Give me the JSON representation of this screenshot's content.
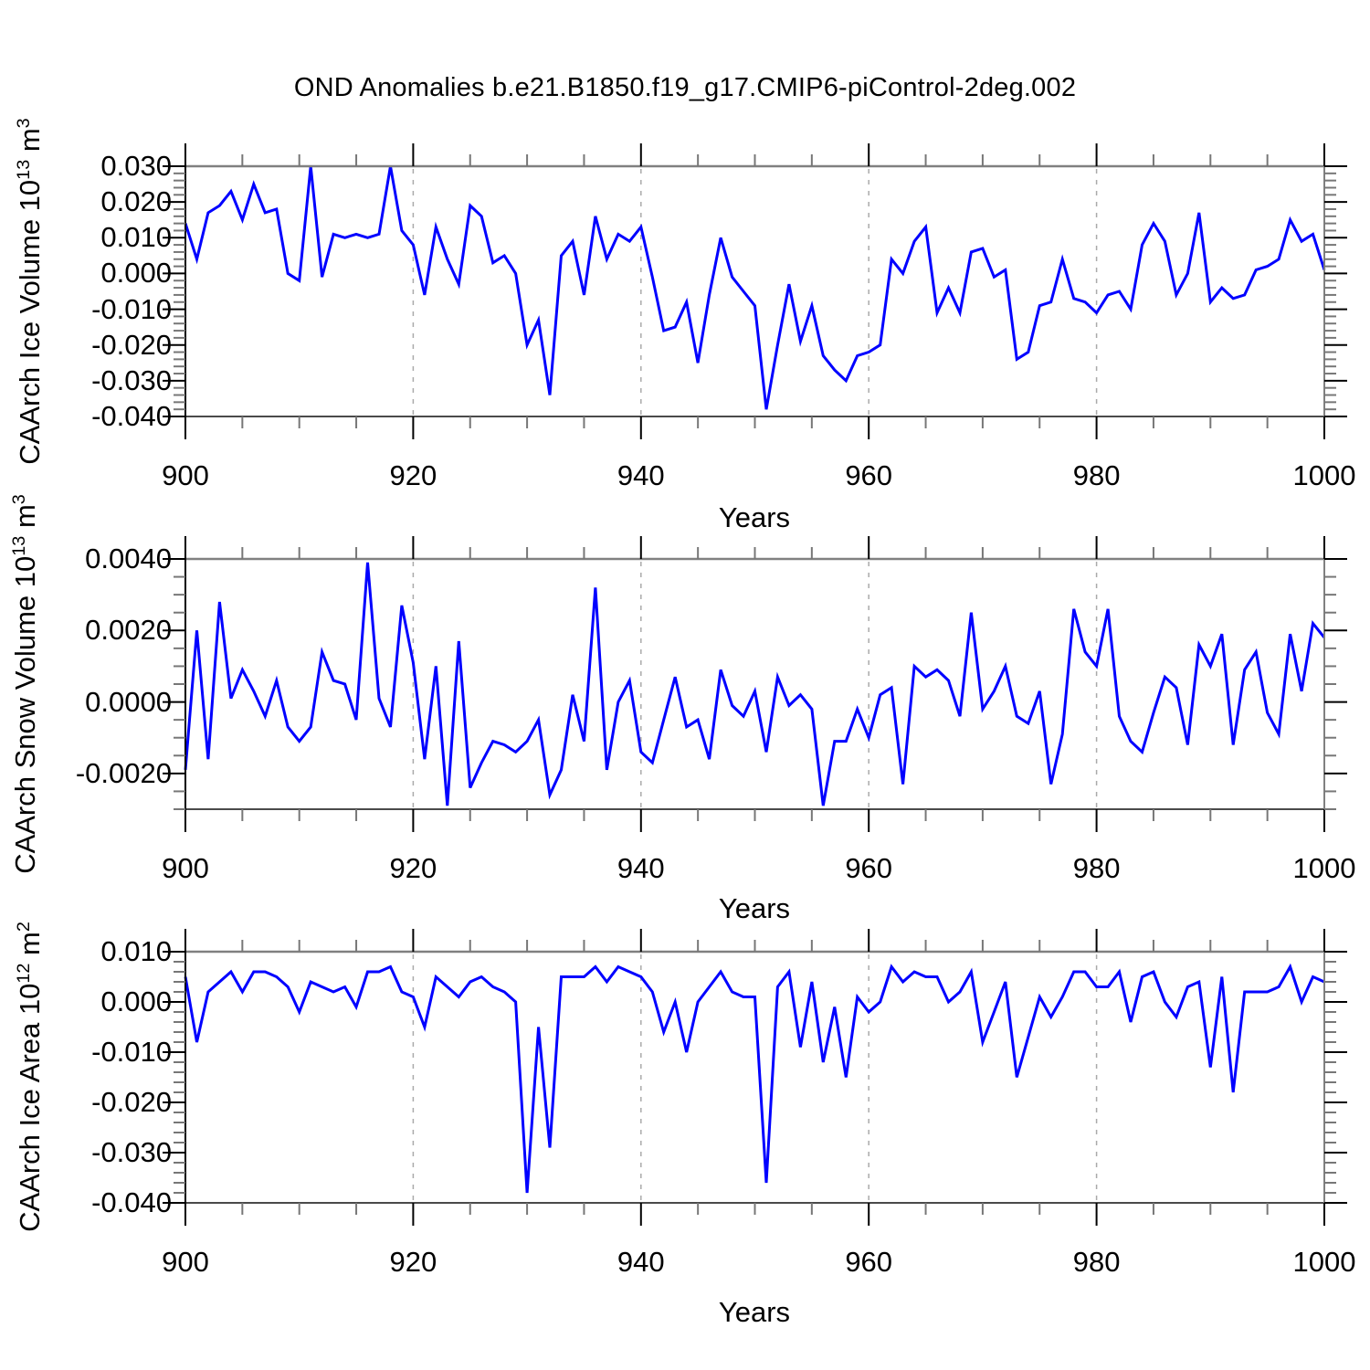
{
  "title": "OND Anomalies b.e21.B1850.f19_g17.CMIP6-piControl-2deg.002",
  "colors": {
    "line": "#0000ff",
    "frame_dark": "#000000",
    "frame_gray": "#808080",
    "major_tick": "#000000",
    "minor_tick": "#777777",
    "grid": "#aaaaaa",
    "background": "#ffffff",
    "text": "#000000"
  },
  "x_axis": {
    "label": "Years",
    "range": [
      900,
      1000
    ],
    "major_ticks": [
      900,
      920,
      940,
      960,
      980,
      1000
    ],
    "major_tick_labels": [
      "900",
      "920",
      "940",
      "960",
      "980",
      "1000"
    ],
    "minor_step": 5,
    "gridlines": [
      920,
      940,
      960,
      980
    ]
  },
  "chart_data": [
    {
      "type": "line",
      "series_name": "CAArch Ice Volume anomaly",
      "xlabel": "Years",
      "ylabel": "CAArch Ice Volume 10¹³ m³",
      "ylabel_parts": [
        {
          "t": "CAArch Ice Volume 10"
        },
        {
          "t": "13"
        },
        {
          "t": " m"
        },
        {
          "t": "3"
        }
      ],
      "ylim": [
        -0.04,
        0.03
      ],
      "ytick_values": [
        0.03,
        0.02,
        0.01,
        0.0,
        -0.01,
        -0.02,
        -0.03,
        -0.04
      ],
      "ytick_labels": [
        "0.030",
        "0.020",
        "0.010",
        "0.000",
        "-0.010",
        "-0.020",
        "-0.030",
        "-0.040"
      ],
      "minor_tick_step": 0.002,
      "grid": "vertical-dashed-only",
      "legend": "none",
      "x_start": 900,
      "x_step": 1,
      "values": [
        0.014,
        0.004,
        0.017,
        0.019,
        0.023,
        0.015,
        0.025,
        0.017,
        0.018,
        0.0,
        -0.002,
        0.03,
        -0.001,
        0.011,
        0.01,
        0.011,
        0.01,
        0.011,
        0.03,
        0.012,
        0.008,
        -0.006,
        0.013,
        0.004,
        -0.003,
        0.019,
        0.016,
        0.003,
        0.005,
        0.0,
        -0.02,
        -0.013,
        -0.034,
        0.005,
        0.009,
        -0.006,
        0.016,
        0.004,
        0.011,
        0.009,
        0.013,
        -0.001,
        -0.016,
        -0.015,
        -0.008,
        -0.025,
        -0.006,
        0.01,
        -0.001,
        -0.005,
        -0.009,
        -0.038,
        -0.02,
        -0.003,
        -0.019,
        -0.009,
        -0.023,
        -0.027,
        -0.03,
        -0.023,
        -0.022,
        -0.02,
        0.004,
        0.0,
        0.009,
        0.013,
        -0.011,
        -0.004,
        -0.011,
        0.006,
        0.007,
        -0.001,
        0.001,
        -0.024,
        -0.022,
        -0.009,
        -0.008,
        0.004,
        -0.007,
        -0.008,
        -0.011,
        -0.006,
        -0.005,
        -0.01,
        0.008,
        0.014,
        0.009,
        -0.006,
        0.0,
        0.017,
        -0.008,
        -0.004,
        -0.007,
        -0.006,
        0.001,
        0.002,
        0.004,
        0.015,
        0.009,
        0.011,
        0.001
      ]
    },
    {
      "type": "line",
      "series_name": "CAArch Snow Volume anomaly",
      "xlabel": "Years",
      "ylabel": "CAArch Snow Volume 10¹³ m³",
      "ylabel_parts": [
        {
          "t": "CAArch Snow Volume 10"
        },
        {
          "t": "13"
        },
        {
          "t": " m"
        },
        {
          "t": "3"
        }
      ],
      "ylim": [
        -0.003,
        0.004
      ],
      "ytick_values": [
        0.004,
        0.002,
        0.0,
        -0.002
      ],
      "ytick_labels": [
        "0.0040",
        "0.0020",
        "0.0000",
        "-0.0020"
      ],
      "minor_tick_step": 0.0005,
      "grid": "vertical-dashed-only",
      "legend": "none",
      "x_start": 900,
      "x_step": 1,
      "values": [
        -0.0019,
        0.002,
        -0.0016,
        0.0028,
        0.0001,
        0.0009,
        0.0003,
        -0.0004,
        0.0006,
        -0.0007,
        -0.0011,
        -0.0007,
        0.0014,
        0.0006,
        0.0005,
        -0.0005,
        0.0039,
        0.0001,
        -0.0007,
        0.0027,
        0.0011,
        -0.0016,
        0.001,
        -0.0029,
        0.0017,
        -0.0024,
        -0.0017,
        -0.0011,
        -0.0012,
        -0.0014,
        -0.0011,
        -0.0005,
        -0.0026,
        -0.0019,
        0.0002,
        -0.0011,
        0.0032,
        -0.0019,
        0.0,
        0.0006,
        -0.0014,
        -0.0017,
        -0.0005,
        0.0007,
        -0.0007,
        -0.0005,
        -0.0016,
        0.0009,
        -0.0001,
        -0.0004,
        0.0003,
        -0.0014,
        0.0007,
        -0.0001,
        0.0002,
        -0.0002,
        -0.0029,
        -0.0011,
        -0.0011,
        -0.0002,
        -0.001,
        0.0002,
        0.0004,
        -0.0023,
        0.001,
        0.0007,
        0.0009,
        0.0006,
        -0.0004,
        0.0025,
        -0.0002,
        0.0003,
        0.001,
        -0.0004,
        -0.0006,
        0.0003,
        -0.0023,
        -0.0009,
        0.0026,
        0.0014,
        0.001,
        0.0026,
        -0.0004,
        -0.0011,
        -0.0014,
        -0.0003,
        0.0007,
        0.0004,
        -0.0012,
        0.0016,
        0.001,
        0.0019,
        -0.0012,
        0.0009,
        0.0014,
        -0.0003,
        -0.0009,
        0.0019,
        0.0003,
        0.0022,
        0.0018
      ]
    },
    {
      "type": "line",
      "series_name": "CAArch Ice Area anomaly",
      "xlabel": "Years",
      "ylabel": "CAArch Ice Area 10¹² m²",
      "ylabel_parts": [
        {
          "t": "CAArch Ice Area 10"
        },
        {
          "t": "12"
        },
        {
          "t": " m"
        },
        {
          "t": "2"
        }
      ],
      "ylim": [
        -0.04,
        0.01
      ],
      "ytick_values": [
        0.01,
        0.0,
        -0.01,
        -0.02,
        -0.03,
        -0.04
      ],
      "ytick_labels": [
        "0.010",
        "0.000",
        "-0.010",
        "-0.020",
        "-0.030",
        "-0.040"
      ],
      "minor_tick_step": 0.002,
      "grid": "vertical-dashed-only",
      "legend": "none",
      "x_start": 900,
      "x_step": 1,
      "values": [
        0.005,
        -0.008,
        0.002,
        0.004,
        0.006,
        0.002,
        0.006,
        0.006,
        0.005,
        0.003,
        -0.002,
        0.004,
        0.003,
        0.002,
        0.003,
        -0.001,
        0.006,
        0.006,
        0.007,
        0.002,
        0.001,
        -0.005,
        0.005,
        0.003,
        0.001,
        0.004,
        0.005,
        0.003,
        0.002,
        0.0,
        -0.038,
        -0.005,
        -0.029,
        0.005,
        0.005,
        0.005,
        0.007,
        0.004,
        0.007,
        0.006,
        0.005,
        0.002,
        -0.006,
        0.0,
        -0.01,
        0.0,
        0.003,
        0.006,
        0.002,
        0.001,
        0.001,
        -0.036,
        0.003,
        0.006,
        -0.009,
        0.004,
        -0.012,
        -0.001,
        -0.015,
        0.001,
        -0.002,
        0.0,
        0.007,
        0.004,
        0.006,
        0.005,
        0.005,
        0.0,
        0.002,
        0.006,
        -0.008,
        -0.002,
        0.004,
        -0.015,
        -0.007,
        0.001,
        -0.003,
        0.001,
        0.006,
        0.006,
        0.003,
        0.003,
        0.006,
        -0.004,
        0.005,
        0.006,
        0.0,
        -0.003,
        0.003,
        0.004,
        -0.013,
        0.005,
        -0.018,
        0.002,
        0.002,
        0.002,
        0.003,
        0.007,
        0.0,
        0.005,
        0.004
      ]
    }
  ]
}
